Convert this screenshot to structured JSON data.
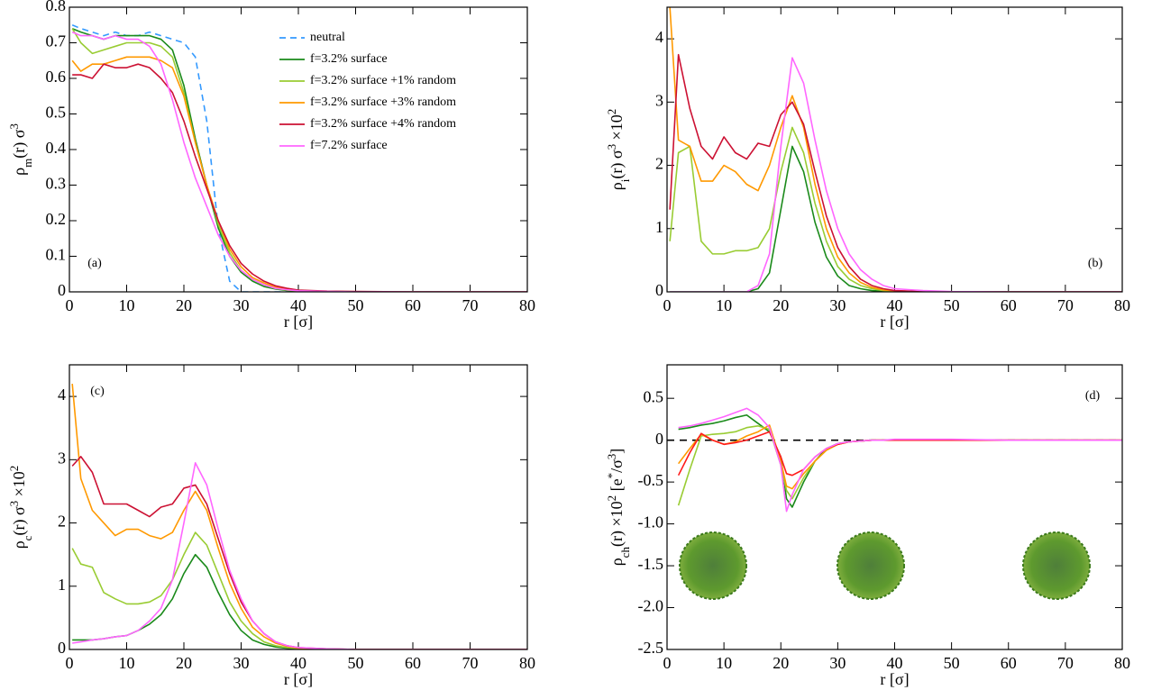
{
  "chart_data": [
    {
      "type": "line",
      "xlabel": "r [σ]",
      "ylabel": [
        "ρ",
        "m",
        "(r) σ",
        "3"
      ],
      "annotation": "(a)",
      "legend": "top",
      "x": [
        0.5,
        2,
        4,
        6,
        8,
        10,
        12,
        14,
        16,
        18,
        20,
        22,
        24,
        26,
        28,
        30,
        32,
        34,
        36,
        38,
        40,
        45,
        50,
        60,
        70,
        80
      ],
      "xlim": [
        0,
        80
      ],
      "xticks": [
        0,
        10,
        20,
        30,
        40,
        50,
        60,
        70,
        80
      ],
      "ylim": [
        0,
        0.8
      ],
      "yticks": [
        0,
        0.1,
        0.2,
        0.3,
        0.4,
        0.5,
        0.6,
        0.7,
        0.8
      ],
      "series": [
        {
          "name": "neutral",
          "color": "#3399ff",
          "linestyle": "dashed",
          "values": [
            0.75,
            0.74,
            0.73,
            0.72,
            0.73,
            0.72,
            0.72,
            0.73,
            0.72,
            0.71,
            0.7,
            0.66,
            0.48,
            0.18,
            0.03,
            0.0,
            0,
            0,
            0,
            0,
            0,
            0,
            0,
            0,
            0,
            0
          ]
        },
        {
          "name": "f=3.2% surface",
          "color": "#1a8a1a",
          "values": [
            0.74,
            0.73,
            0.72,
            0.71,
            0.72,
            0.72,
            0.72,
            0.72,
            0.71,
            0.68,
            0.58,
            0.43,
            0.3,
            0.18,
            0.1,
            0.055,
            0.03,
            0.015,
            0.008,
            0.004,
            0.002,
            0,
            0,
            0,
            0,
            0
          ]
        },
        {
          "name": "f=3.2% surface +1% random",
          "color": "#99cc33",
          "values": [
            0.74,
            0.7,
            0.67,
            0.68,
            0.69,
            0.7,
            0.7,
            0.7,
            0.69,
            0.66,
            0.56,
            0.42,
            0.3,
            0.19,
            0.11,
            0.06,
            0.035,
            0.02,
            0.01,
            0.005,
            0.003,
            0.001,
            0,
            0,
            0,
            0
          ]
        },
        {
          "name": "f=3.2% surface +3% random",
          "color": "#ff9900",
          "values": [
            0.65,
            0.62,
            0.64,
            0.64,
            0.65,
            0.66,
            0.66,
            0.66,
            0.65,
            0.63,
            0.55,
            0.42,
            0.3,
            0.2,
            0.12,
            0.07,
            0.04,
            0.025,
            0.013,
            0.007,
            0.004,
            0.001,
            0,
            0,
            0,
            0
          ]
        },
        {
          "name": "f=3.2% surface +4% random",
          "color": "#cc1133",
          "values": [
            0.61,
            0.61,
            0.6,
            0.64,
            0.63,
            0.63,
            0.64,
            0.63,
            0.6,
            0.56,
            0.48,
            0.38,
            0.29,
            0.2,
            0.13,
            0.08,
            0.05,
            0.03,
            0.017,
            0.01,
            0.005,
            0.002,
            0.001,
            0,
            0,
            0
          ]
        },
        {
          "name": "f=7.2% surface",
          "color": "#ff66ff",
          "values": [
            0.73,
            0.72,
            0.72,
            0.71,
            0.72,
            0.71,
            0.71,
            0.69,
            0.64,
            0.54,
            0.42,
            0.32,
            0.24,
            0.16,
            0.1,
            0.06,
            0.035,
            0.02,
            0.01,
            0.006,
            0.003,
            0.001,
            0,
            0,
            0,
            0
          ]
        }
      ]
    },
    {
      "type": "line",
      "xlabel": "r [σ]",
      "ylabel": [
        "ρ",
        "i",
        "(r) σ",
        "3",
        " ×10",
        "2"
      ],
      "annotation": "(b)",
      "x": [
        0.5,
        2,
        4,
        6,
        8,
        10,
        12,
        14,
        16,
        18,
        20,
        22,
        24,
        26,
        28,
        30,
        32,
        34,
        36,
        38,
        40,
        45,
        50,
        60,
        70,
        80
      ],
      "xlim": [
        0,
        80
      ],
      "xticks": [
        0,
        10,
        20,
        30,
        40,
        50,
        60,
        70,
        80
      ],
      "ylim": [
        0,
        4.5
      ],
      "yticks": [
        0,
        1,
        2,
        3,
        4
      ],
      "series": [
        {
          "color": "#1a8a1a",
          "values": [
            0,
            0,
            0,
            0,
            0,
            0,
            0,
            0,
            0.05,
            0.3,
            1.3,
            2.3,
            1.9,
            1.1,
            0.55,
            0.25,
            0.1,
            0.05,
            0.02,
            0.01,
            0,
            0,
            0,
            0,
            0,
            0
          ]
        },
        {
          "color": "#99cc33",
          "values": [
            0.8,
            2.2,
            2.3,
            0.8,
            0.6,
            0.6,
            0.65,
            0.65,
            0.7,
            1.0,
            1.9,
            2.6,
            2.2,
            1.4,
            0.8,
            0.4,
            0.2,
            0.1,
            0.05,
            0.02,
            0.01,
            0,
            0,
            0,
            0,
            0
          ]
        },
        {
          "color": "#ff9900",
          "values": [
            4.5,
            2.4,
            2.3,
            1.75,
            1.75,
            2.0,
            1.9,
            1.7,
            1.6,
            2.0,
            2.6,
            3.1,
            2.6,
            1.7,
            1.0,
            0.55,
            0.3,
            0.15,
            0.07,
            0.03,
            0.015,
            0,
            0,
            0,
            0,
            0
          ]
        },
        {
          "color": "#cc1133",
          "values": [
            1.3,
            3.75,
            2.9,
            2.3,
            2.1,
            2.45,
            2.2,
            2.1,
            2.35,
            2.3,
            2.8,
            3.0,
            2.65,
            1.9,
            1.2,
            0.7,
            0.4,
            0.2,
            0.1,
            0.05,
            0.02,
            0.005,
            0,
            0,
            0,
            0
          ]
        },
        {
          "color": "#ff66ff",
          "values": [
            0,
            0,
            0,
            0,
            0,
            0,
            0,
            0,
            0.1,
            0.6,
            2.3,
            3.7,
            3.3,
            2.4,
            1.6,
            1.0,
            0.6,
            0.35,
            0.2,
            0.1,
            0.05,
            0.02,
            0.005,
            0,
            0,
            0
          ]
        }
      ]
    },
    {
      "type": "line",
      "xlabel": "r [σ]",
      "ylabel": [
        "ρ",
        "c",
        "(r) σ",
        "3",
        " ×10",
        "2"
      ],
      "annotation": "(c)",
      "x": [
        0.5,
        2,
        4,
        6,
        8,
        10,
        12,
        14,
        16,
        18,
        20,
        22,
        24,
        26,
        28,
        30,
        32,
        34,
        36,
        38,
        40,
        45,
        50,
        60,
        70,
        80
      ],
      "xlim": [
        0,
        80
      ],
      "xticks": [
        0,
        10,
        20,
        30,
        40,
        50,
        60,
        70,
        80
      ],
      "ylim": [
        0,
        4.5
      ],
      "yticks": [
        0,
        1,
        2,
        3,
        4
      ],
      "series": [
        {
          "color": "#1a8a1a",
          "values": [
            0.15,
            0.15,
            0.15,
            0.17,
            0.2,
            0.22,
            0.3,
            0.4,
            0.55,
            0.8,
            1.2,
            1.5,
            1.3,
            0.9,
            0.55,
            0.3,
            0.15,
            0.08,
            0.04,
            0.02,
            0.01,
            0,
            0,
            0,
            0,
            0
          ]
        },
        {
          "color": "#99cc33",
          "values": [
            1.6,
            1.35,
            1.3,
            0.9,
            0.8,
            0.72,
            0.72,
            0.75,
            0.85,
            1.1,
            1.5,
            1.85,
            1.65,
            1.2,
            0.75,
            0.45,
            0.25,
            0.12,
            0.06,
            0.03,
            0.015,
            0,
            0,
            0,
            0,
            0
          ]
        },
        {
          "color": "#ff9900",
          "values": [
            4.2,
            2.7,
            2.2,
            2.0,
            1.8,
            1.9,
            1.9,
            1.8,
            1.75,
            1.85,
            2.2,
            2.5,
            2.2,
            1.6,
            1.05,
            0.65,
            0.35,
            0.2,
            0.1,
            0.05,
            0.02,
            0.005,
            0,
            0,
            0,
            0
          ]
        },
        {
          "color": "#cc1133",
          "values": [
            2.9,
            3.05,
            2.8,
            2.3,
            2.3,
            2.3,
            2.2,
            2.1,
            2.25,
            2.3,
            2.55,
            2.6,
            2.3,
            1.75,
            1.2,
            0.75,
            0.45,
            0.25,
            0.12,
            0.06,
            0.03,
            0.01,
            0,
            0,
            0,
            0
          ]
        },
        {
          "color": "#ff66ff",
          "values": [
            0.1,
            0.12,
            0.15,
            0.17,
            0.2,
            0.22,
            0.3,
            0.45,
            0.65,
            1.1,
            2.0,
            2.95,
            2.6,
            1.9,
            1.25,
            0.8,
            0.45,
            0.25,
            0.12,
            0.06,
            0.03,
            0.01,
            0,
            0,
            0,
            0
          ]
        }
      ]
    },
    {
      "type": "line",
      "xlabel": "r [σ]",
      "ylabel": [
        "ρ",
        "ch",
        "(r) ×10",
        "2",
        " [e",
        "*",
        "/σ",
        "3",
        "]"
      ],
      "annotation": "(d)",
      "reference_line": 0,
      "x": [
        2,
        4,
        6,
        8,
        10,
        12,
        14,
        16,
        18,
        20,
        21,
        22,
        24,
        26,
        28,
        30,
        32,
        34,
        36,
        38,
        40,
        45,
        50,
        60,
        70,
        80
      ],
      "xlim": [
        0,
        80
      ],
      "xticks": [
        0,
        10,
        20,
        30,
        40,
        50,
        60,
        70,
        80
      ],
      "ylim": [
        -2.5,
        0.9
      ],
      "yticks": [
        -2.5,
        {
          "value": -2,
          "label": "-2.0"
        },
        -1.5,
        {
          "value": -1,
          "label": "-1.0"
        },
        -0.5,
        0,
        0.5
      ],
      "series": [
        {
          "color": "#1a8a1a",
          "values": [
            0.13,
            0.15,
            0.18,
            0.2,
            0.23,
            0.27,
            0.3,
            0.2,
            0.1,
            -0.2,
            -0.7,
            -0.8,
            -0.5,
            -0.25,
            -0.1,
            -0.04,
            -0.02,
            -0.01,
            0,
            0,
            0,
            0,
            0,
            0,
            0,
            0
          ]
        },
        {
          "color": "#99cc33",
          "values": [
            -0.78,
            -0.35,
            0.05,
            0.07,
            0.08,
            0.1,
            0.15,
            0.17,
            0.13,
            -0.3,
            -0.6,
            -0.7,
            -0.45,
            -0.25,
            -0.12,
            -0.05,
            -0.02,
            -0.01,
            0,
            0,
            0,
            0,
            0,
            0,
            0,
            0
          ]
        },
        {
          "color": "#ff9900",
          "values": [
            -0.28,
            -0.1,
            0.07,
            0.0,
            -0.05,
            -0.02,
            0.05,
            0.1,
            0.18,
            -0.25,
            -0.55,
            -0.58,
            -0.4,
            -0.25,
            -0.12,
            -0.05,
            -0.02,
            -0.01,
            0,
            0,
            0,
            0,
            0,
            0,
            0,
            0
          ]
        },
        {
          "color": "#ff1a1a",
          "values": [
            -0.42,
            -0.15,
            0.08,
            0.0,
            -0.05,
            -0.03,
            0.0,
            0.05,
            0.1,
            -0.2,
            -0.4,
            -0.42,
            -0.35,
            -0.2,
            -0.1,
            -0.05,
            -0.02,
            -0.01,
            0,
            0,
            0,
            0,
            0,
            0,
            0,
            0
          ]
        },
        {
          "color": "#ff66ff",
          "values": [
            0.15,
            0.17,
            0.2,
            0.24,
            0.28,
            0.33,
            0.38,
            0.3,
            0.15,
            -0.3,
            -0.85,
            -0.65,
            -0.35,
            -0.2,
            -0.1,
            -0.04,
            -0.02,
            -0.01,
            0,
            0,
            0.01,
            0.01,
            0.01,
            0,
            0,
            0
          ]
        }
      ]
    }
  ]
}
